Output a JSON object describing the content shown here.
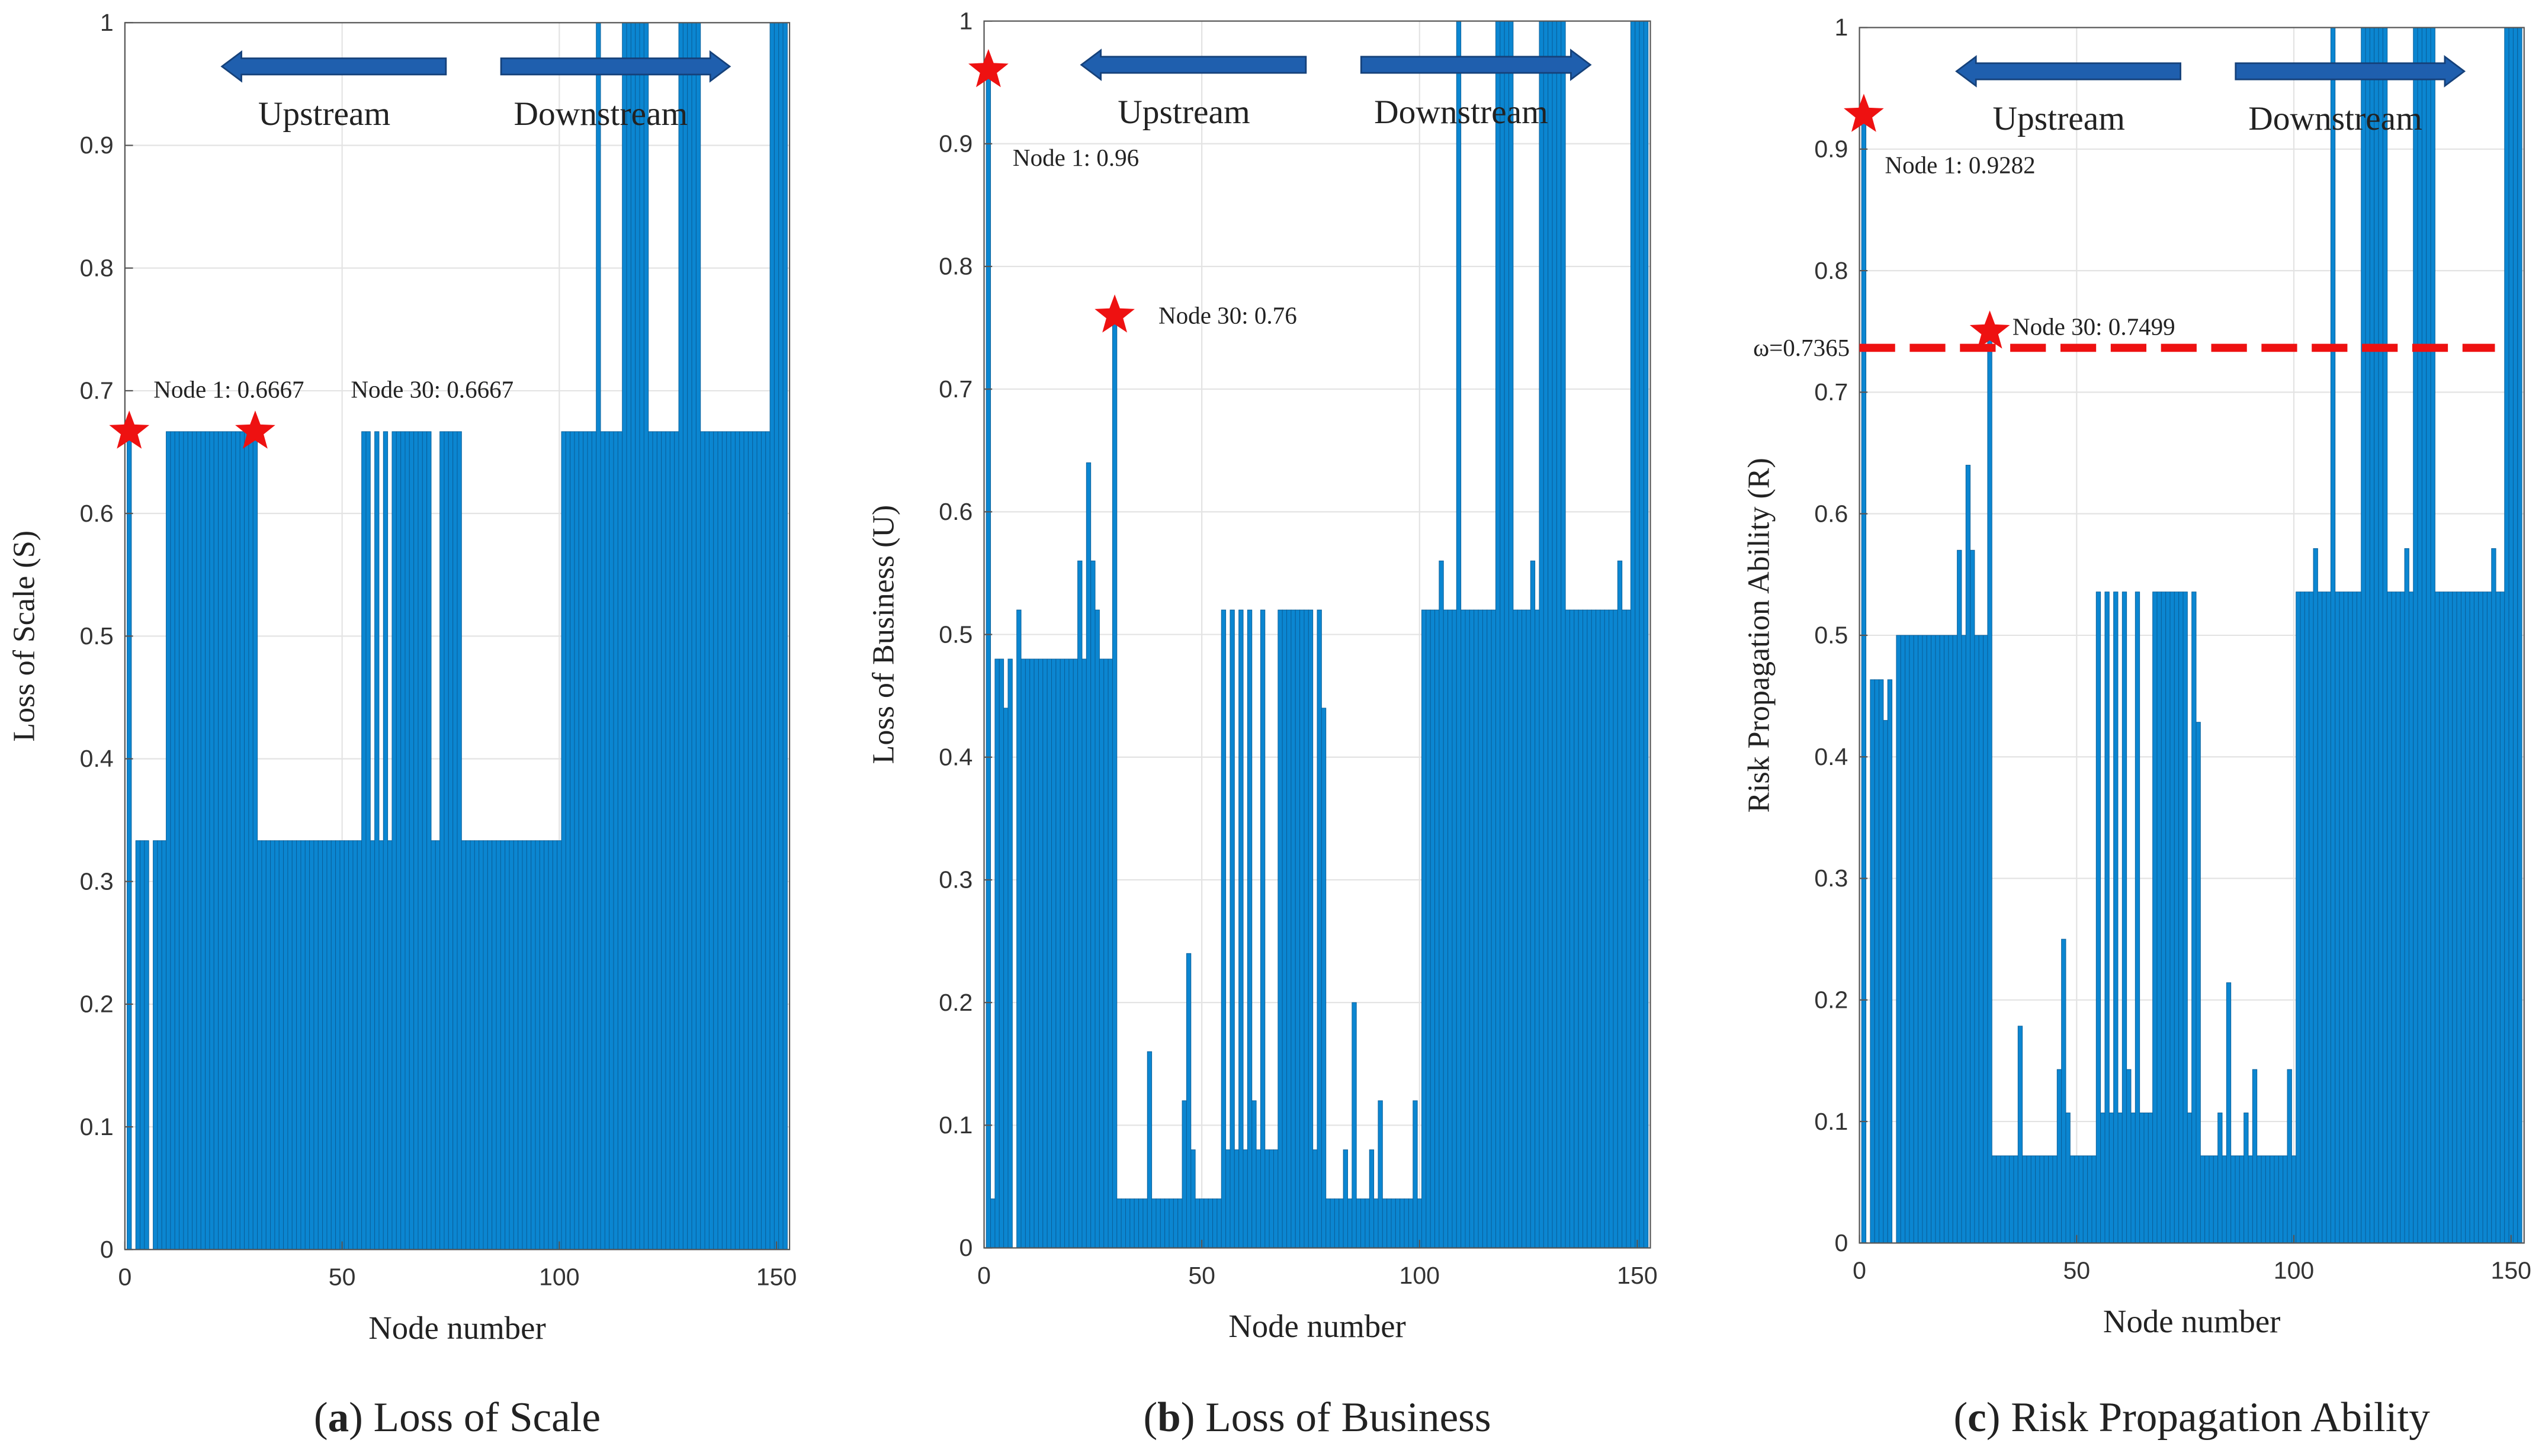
{
  "chart_data": [
    {
      "type": "bar",
      "ylabel": "Loss of Scale (S)",
      "xlabel": "Node number",
      "caption": [
        "(",
        "a",
        ") Loss of Scale"
      ],
      "upstream_label": "Upstream",
      "downstream_label": "Downstream",
      "color": "#0b86d1",
      "xlim": [
        0,
        153
      ],
      "xticks": [
        0,
        50,
        100,
        150
      ],
      "ylim": [
        0,
        1
      ],
      "yticks": [
        0,
        0.1,
        0.2,
        0.3,
        0.4,
        0.5,
        0.6,
        0.7,
        0.8,
        0.9,
        1
      ],
      "grid": true,
      "x": [
        1,
        2,
        3,
        4,
        5,
        6,
        7,
        8,
        9,
        10,
        11,
        12,
        13,
        14,
        15,
        16,
        17,
        18,
        19,
        20,
        21,
        22,
        23,
        24,
        25,
        26,
        27,
        28,
        29,
        30,
        31,
        32,
        33,
        34,
        35,
        36,
        37,
        38,
        39,
        40,
        41,
        42,
        43,
        44,
        45,
        46,
        47,
        48,
        49,
        50,
        51,
        52,
        53,
        54,
        55,
        56,
        57,
        58,
        59,
        60,
        61,
        62,
        63,
        64,
        65,
        66,
        67,
        68,
        69,
        70,
        71,
        72,
        73,
        74,
        75,
        76,
        77,
        78,
        79,
        80,
        81,
        82,
        83,
        84,
        85,
        86,
        87,
        88,
        89,
        90,
        91,
        92,
        93,
        94,
        95,
        96,
        97,
        98,
        99,
        100,
        101,
        102,
        103,
        104,
        105,
        106,
        107,
        108,
        109,
        110,
        111,
        112,
        113,
        114,
        115,
        116,
        117,
        118,
        119,
        120,
        121,
        122,
        123,
        124,
        125,
        126,
        127,
        128,
        129,
        130,
        131,
        132,
        133,
        134,
        135,
        136,
        137,
        138,
        139,
        140,
        141,
        142,
        143,
        144,
        145,
        146,
        147,
        148,
        149,
        150,
        151,
        152
      ],
      "values": [
        0.6667,
        0,
        0.3333,
        0.3333,
        0.3333,
        0,
        0.3333,
        0.3333,
        0.3333,
        0.6667,
        0.6667,
        0.6667,
        0.6667,
        0.6667,
        0.6667,
        0.6667,
        0.6667,
        0.6667,
        0.6667,
        0.6667,
        0.6667,
        0.6667,
        0.6667,
        0.6667,
        0.6667,
        0.6667,
        0.6667,
        0.6667,
        0.6667,
        0.6667,
        0.3333,
        0.3333,
        0.3333,
        0.3333,
        0.3333,
        0.3333,
        0.3333,
        0.3333,
        0.3333,
        0.3333,
        0.3333,
        0.3333,
        0.3333,
        0.3333,
        0.3333,
        0.3333,
        0.3333,
        0.3333,
        0.3333,
        0.3333,
        0.3333,
        0.3333,
        0.3333,
        0.3333,
        0.6667,
        0.6667,
        0.3333,
        0.6667,
        0.3333,
        0.6667,
        0.3333,
        0.6667,
        0.6667,
        0.6667,
        0.6667,
        0.6667,
        0.6667,
        0.6667,
        0.6667,
        0.6667,
        0.3333,
        0.3333,
        0.6667,
        0.6667,
        0.6667,
        0.6667,
        0.6667,
        0.3333,
        0.3333,
        0.3333,
        0.3333,
        0.3333,
        0.3333,
        0.3333,
        0.3333,
        0.3333,
        0.3333,
        0.3333,
        0.3333,
        0.3333,
        0.3333,
        0.3333,
        0.3333,
        0.3333,
        0.3333,
        0.3333,
        0.3333,
        0.3333,
        0.3333,
        0.3333,
        0.6667,
        0.6667,
        0.6667,
        0.6667,
        0.6667,
        0.6667,
        0.6667,
        0.6667,
        1,
        0.6667,
        0.6667,
        0.6667,
        0.6667,
        0.6667,
        1,
        1,
        1,
        1,
        1,
        1,
        0.6667,
        0.6667,
        0.6667,
        0.6667,
        0.6667,
        0.6667,
        0.6667,
        1,
        1,
        1,
        1,
        1,
        0.6667,
        0.6667,
        0.6667,
        0.6667,
        0.6667,
        0.6667,
        0.6667,
        0.6667,
        0.6667,
        0.6667,
        0.6667,
        0.6667,
        0.6667,
        0.6667,
        0.6667,
        0.6667,
        1,
        1,
        1,
        1
      ],
      "annotations": [
        {
          "text": "Node 1: 0.6667",
          "x": 1,
          "y": 0.6667
        },
        {
          "text": "Node 30: 0.6667",
          "x": 30,
          "y": 0.6667
        }
      ]
    },
    {
      "type": "bar",
      "ylabel": "Loss of Business (U)",
      "xlabel": "Node number",
      "caption": [
        "(",
        "b",
        ") Loss of Business"
      ],
      "upstream_label": "Upstream",
      "downstream_label": "Downstream",
      "color": "#0b86d1",
      "xlim": [
        0,
        153
      ],
      "xticks": [
        0,
        50,
        100,
        150
      ],
      "ylim": [
        0,
        1
      ],
      "yticks": [
        0,
        0.1,
        0.2,
        0.3,
        0.4,
        0.5,
        0.6,
        0.7,
        0.8,
        0.9,
        1
      ],
      "grid": true,
      "x": [
        1,
        2,
        3,
        4,
        5,
        6,
        7,
        8,
        9,
        10,
        11,
        12,
        13,
        14,
        15,
        16,
        17,
        18,
        19,
        20,
        21,
        22,
        23,
        24,
        25,
        26,
        27,
        28,
        29,
        30,
        31,
        32,
        33,
        34,
        35,
        36,
        37,
        38,
        39,
        40,
        41,
        42,
        43,
        44,
        45,
        46,
        47,
        48,
        49,
        50,
        51,
        52,
        53,
        54,
        55,
        56,
        57,
        58,
        59,
        60,
        61,
        62,
        63,
        64,
        65,
        66,
        67,
        68,
        69,
        70,
        71,
        72,
        73,
        74,
        75,
        76,
        77,
        78,
        79,
        80,
        81,
        82,
        83,
        84,
        85,
        86,
        87,
        88,
        89,
        90,
        91,
        92,
        93,
        94,
        95,
        96,
        97,
        98,
        99,
        100,
        101,
        102,
        103,
        104,
        105,
        106,
        107,
        108,
        109,
        110,
        111,
        112,
        113,
        114,
        115,
        116,
        117,
        118,
        119,
        120,
        121,
        122,
        123,
        124,
        125,
        126,
        127,
        128,
        129,
        130,
        131,
        132,
        133,
        134,
        135,
        136,
        137,
        138,
        139,
        140,
        141,
        142,
        143,
        144,
        145,
        146,
        147,
        148,
        149,
        150,
        151,
        152
      ],
      "values": [
        0.96,
        0.04,
        0.48,
        0.48,
        0.44,
        0.48,
        0,
        0.52,
        0.48,
        0.48,
        0.48,
        0.48,
        0.48,
        0.48,
        0.48,
        0.48,
        0.48,
        0.48,
        0.48,
        0.48,
        0.48,
        0.56,
        0.48,
        0.64,
        0.56,
        0.52,
        0.48,
        0.48,
        0.48,
        0.76,
        0.04,
        0.04,
        0.04,
        0.04,
        0.04,
        0.04,
        0.04,
        0.16,
        0.04,
        0.04,
        0.04,
        0.04,
        0.04,
        0.04,
        0.04,
        0.12,
        0.24,
        0.08,
        0.04,
        0.04,
        0.04,
        0.04,
        0.04,
        0.04,
        0.52,
        0.08,
        0.52,
        0.08,
        0.52,
        0.08,
        0.52,
        0.12,
        0.08,
        0.52,
        0.08,
        0.08,
        0.08,
        0.52,
        0.52,
        0.52,
        0.52,
        0.52,
        0.52,
        0.52,
        0.52,
        0.08,
        0.52,
        0.44,
        0.04,
        0.04,
        0.04,
        0.04,
        0.08,
        0.04,
        0.2,
        0.04,
        0.04,
        0.04,
        0.08,
        0.04,
        0.12,
        0.04,
        0.04,
        0.04,
        0.04,
        0.04,
        0.04,
        0.04,
        0.12,
        0.04,
        0.52,
        0.52,
        0.52,
        0.52,
        0.56,
        0.52,
        0.52,
        0.52,
        1,
        0.52,
        0.52,
        0.52,
        0.52,
        0.52,
        0.52,
        0.52,
        0.52,
        1,
        1,
        1,
        1,
        0.52,
        0.52,
        0.52,
        0.52,
        0.56,
        0.52,
        1,
        1,
        1,
        1,
        1,
        1,
        0.52,
        0.52,
        0.52,
        0.52,
        0.52,
        0.52,
        0.52,
        0.52,
        0.52,
        0.52,
        0.52,
        0.52,
        0.56,
        0.52,
        0.52,
        1,
        1,
        1,
        1
      ],
      "annotations": [
        {
          "text": "Node 1: 0.96",
          "x": 1,
          "y": 0.96
        },
        {
          "text": "Node 30: 0.76",
          "x": 30,
          "y": 0.76
        }
      ]
    },
    {
      "type": "bar",
      "ylabel": "Risk Propagation Ability (R)",
      "xlabel": "Node number",
      "caption": [
        "(",
        "c",
        ") Risk Propagation Ability"
      ],
      "upstream_label": "Upstream",
      "downstream_label": "Downstream",
      "color": "#0b86d1",
      "xlim": [
        0,
        153
      ],
      "xticks": [
        0,
        50,
        100,
        150
      ],
      "ylim": [
        0,
        1
      ],
      "yticks": [
        0,
        0.1,
        0.2,
        0.3,
        0.4,
        0.5,
        0.6,
        0.7,
        0.8,
        0.9,
        1
      ],
      "grid": true,
      "threshold": {
        "value": 0.7365,
        "label": "ω=0.7365",
        "color": "#ee1111"
      },
      "x": [
        1,
        2,
        3,
        4,
        5,
        6,
        7,
        8,
        9,
        10,
        11,
        12,
        13,
        14,
        15,
        16,
        17,
        18,
        19,
        20,
        21,
        22,
        23,
        24,
        25,
        26,
        27,
        28,
        29,
        30,
        31,
        32,
        33,
        34,
        35,
        36,
        37,
        38,
        39,
        40,
        41,
        42,
        43,
        44,
        45,
        46,
        47,
        48,
        49,
        50,
        51,
        52,
        53,
        54,
        55,
        56,
        57,
        58,
        59,
        60,
        61,
        62,
        63,
        64,
        65,
        66,
        67,
        68,
        69,
        70,
        71,
        72,
        73,
        74,
        75,
        76,
        77,
        78,
        79,
        80,
        81,
        82,
        83,
        84,
        85,
        86,
        87,
        88,
        89,
        90,
        91,
        92,
        93,
        94,
        95,
        96,
        97,
        98,
        99,
        100,
        101,
        102,
        103,
        104,
        105,
        106,
        107,
        108,
        109,
        110,
        111,
        112,
        113,
        114,
        115,
        116,
        117,
        118,
        119,
        120,
        121,
        122,
        123,
        124,
        125,
        126,
        127,
        128,
        129,
        130,
        131,
        132,
        133,
        134,
        135,
        136,
        137,
        138,
        139,
        140,
        141,
        142,
        143,
        144,
        145,
        146,
        147,
        148,
        149,
        150,
        151,
        152
      ],
      "values": [
        0.9282,
        0,
        0.4635,
        0.4635,
        0.4635,
        0.43,
        0.4635,
        0,
        0.5,
        0.5,
        0.5,
        0.5,
        0.5,
        0.5,
        0.5,
        0.5,
        0.5,
        0.5,
        0.5,
        0.5,
        0.5,
        0.5,
        0.57,
        0.5,
        0.64,
        0.57,
        0.5,
        0.5,
        0.5,
        0.7499,
        0.0718,
        0.0718,
        0.0718,
        0.0718,
        0.0718,
        0.0718,
        0.1785,
        0.0718,
        0.0718,
        0.0718,
        0.0718,
        0.0718,
        0.0718,
        0.0718,
        0.0718,
        0.1428,
        0.25,
        0.1071,
        0.0718,
        0.0718,
        0.0718,
        0.0718,
        0.0718,
        0.0718,
        0.5357,
        0.1071,
        0.5357,
        0.1071,
        0.5357,
        0.1071,
        0.5357,
        0.1428,
        0.1071,
        0.5357,
        0.1071,
        0.1071,
        0.1071,
        0.5357,
        0.5357,
        0.5357,
        0.5357,
        0.5357,
        0.5357,
        0.5357,
        0.5357,
        0.1071,
        0.5357,
        0.4285,
        0.0718,
        0.0718,
        0.0718,
        0.0718,
        0.1071,
        0.0718,
        0.2142,
        0.0718,
        0.0718,
        0.0718,
        0.1071,
        0.0718,
        0.1428,
        0.0718,
        0.0718,
        0.0718,
        0.0718,
        0.0718,
        0.0718,
        0.0718,
        0.1428,
        0.0718,
        0.5357,
        0.5357,
        0.5357,
        0.5357,
        0.5714,
        0.5357,
        0.5357,
        0.5357,
        1,
        0.5357,
        0.5357,
        0.5357,
        0.5357,
        0.5357,
        0.5357,
        1,
        1,
        1,
        1,
        1,
        1,
        0.5357,
        0.5357,
        0.5357,
        0.5357,
        0.5714,
        0.5357,
        1,
        1,
        1,
        1,
        1,
        0.5357,
        0.5357,
        0.5357,
        0.5357,
        0.5357,
        0.5357,
        0.5357,
        0.5357,
        0.5357,
        0.5357,
        0.5357,
        0.5357,
        0.5357,
        0.5714,
        0.5357,
        0.5357,
        1,
        1,
        1,
        1
      ],
      "annotations": [
        {
          "text": "Node 1: 0.9282",
          "x": 1,
          "y": 0.9282
        },
        {
          "text": "Node 30: 0.7499",
          "x": 30,
          "y": 0.7499
        }
      ]
    }
  ]
}
